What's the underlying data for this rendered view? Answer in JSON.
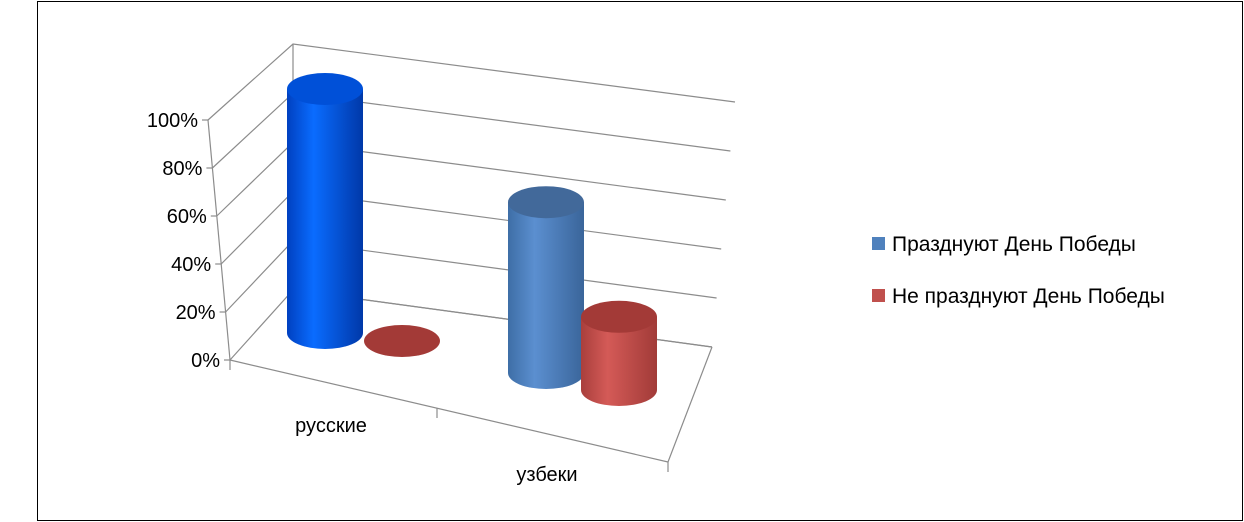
{
  "chart_data": {
    "type": "bar",
    "style": "3d-cylinder",
    "categories": [
      "русские",
      "узбеки"
    ],
    "series": [
      {
        "name": "Празднуют День Победы",
        "values": [
          100,
          70
        ],
        "colors": [
          "#0050d8",
          "#4f81bd"
        ]
      },
      {
        "name": "Не празднуют День Победы",
        "values": [
          0,
          30
        ],
        "colors": [
          "#c0504d",
          "#c0504d"
        ]
      }
    ],
    "yticks": [
      "0%",
      "20%",
      "40%",
      "60%",
      "80%",
      "100%"
    ],
    "ylim": [
      0,
      100
    ],
    "grid": true,
    "legend": "right"
  }
}
